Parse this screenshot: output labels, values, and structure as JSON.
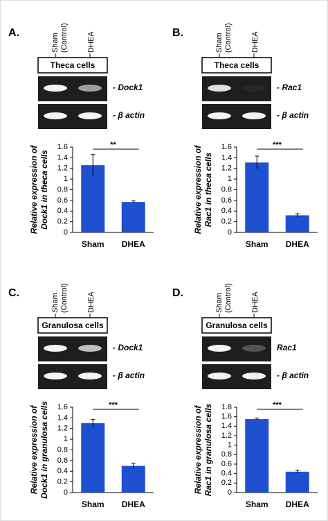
{
  "chart_data": [
    {
      "type": "bar",
      "panel": "A.",
      "lane_labels": [
        [
          "Sham",
          "(Control)"
        ],
        [
          "DHEA"
        ]
      ],
      "gel_title": "Theca cells",
      "gel_labels": [
        "- Dock1",
        "- β actin"
      ],
      "ylabel": [
        "Relative expression of",
        "Dock1 in theca cells"
      ],
      "categories": [
        "Sham",
        "DHEA"
      ],
      "values": [
        1.26,
        0.57
      ],
      "errors": [
        0.2,
        0.02
      ],
      "color": "#1f4fd1",
      "significance": "**",
      "ylim": [
        0,
        1.6
      ],
      "yticks": [
        0,
        0.2,
        0.4,
        0.6,
        0.8,
        1,
        1.2,
        1.4,
        1.6
      ]
    },
    {
      "type": "bar",
      "panel": "B.",
      "lane_labels": [
        [
          "Sham",
          "(Control)"
        ],
        [
          "DHEA"
        ]
      ],
      "gel_title": "Theca cells",
      "gel_labels": [
        "- Rac1",
        "- β actin"
      ],
      "ylabel": [
        "Relative expression of",
        "Rac1 in theca cells"
      ],
      "categories": [
        "Sham",
        "DHEA"
      ],
      "values": [
        1.31,
        0.32
      ],
      "errors": [
        0.12,
        0.03
      ],
      "color": "#1f4fd1",
      "significance": "***",
      "ylim": [
        0,
        1.6
      ],
      "yticks": [
        0,
        0.2,
        0.4,
        0.6,
        0.8,
        1,
        1.2,
        1.4,
        1.6
      ]
    },
    {
      "type": "bar",
      "panel": "C.",
      "lane_labels": [
        [
          "Sham",
          "(Control)"
        ],
        [
          "DHEA"
        ]
      ],
      "gel_title": "Granulosa cells",
      "gel_labels": [
        "- Dock1",
        "- β actin"
      ],
      "ylabel": [
        "Relative expression of",
        "Dock1 in granulosa cells"
      ],
      "categories": [
        "Sham",
        "DHEA"
      ],
      "values": [
        1.3,
        0.5
      ],
      "errors": [
        0.07,
        0.05
      ],
      "color": "#1f4fd1",
      "significance": "***",
      "ylim": [
        0,
        1.6
      ],
      "yticks": [
        0,
        0.2,
        0.4,
        0.6,
        0.8,
        1,
        1.2,
        1.4,
        1.6
      ]
    },
    {
      "type": "bar",
      "panel": "D.",
      "lane_labels": [
        [
          "Sham",
          "(Control)"
        ],
        [
          "DHEA"
        ]
      ],
      "gel_title": "Granulosa cells",
      "gel_labels": [
        "Rac1",
        "- β actin"
      ],
      "ylabel": [
        "Relative expression of",
        "Rac1 in granulosa cells"
      ],
      "categories": [
        "Sham",
        "DHEA"
      ],
      "values": [
        1.55,
        0.44
      ],
      "errors": [
        0.02,
        0.03
      ],
      "color": "#1f4fd1",
      "significance": "***",
      "ylim": [
        0,
        1.8
      ],
      "yticks": [
        0,
        0.2,
        0.4,
        0.6,
        0.8,
        1,
        1.2,
        1.4,
        1.6,
        1.8
      ]
    }
  ]
}
